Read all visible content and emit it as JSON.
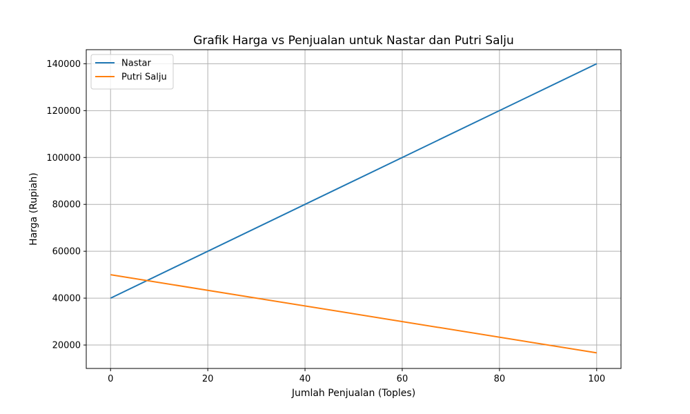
{
  "chart_data": {
    "type": "line",
    "title": "Grafik Harga vs Penjualan untuk Nastar dan Putri Salju",
    "xlabel": "Jumlah Penjualan (Toples)",
    "ylabel": "Harga (Rupiah)",
    "xlim": [
      -5,
      105
    ],
    "ylim": [
      10000,
      146000
    ],
    "x_ticks": [
      0,
      20,
      40,
      60,
      80,
      100
    ],
    "y_ticks": [
      20000,
      40000,
      60000,
      80000,
      100000,
      120000,
      140000
    ],
    "grid": true,
    "legend_position": "top-left",
    "series": [
      {
        "name": "Nastar",
        "color": "#1f77b4",
        "x": [
          0,
          100
        ],
        "y": [
          40000,
          140000
        ]
      },
      {
        "name": "Putri Salju",
        "color": "#ff7f0e",
        "x": [
          0,
          100
        ],
        "y": [
          50000,
          16667
        ]
      }
    ]
  }
}
